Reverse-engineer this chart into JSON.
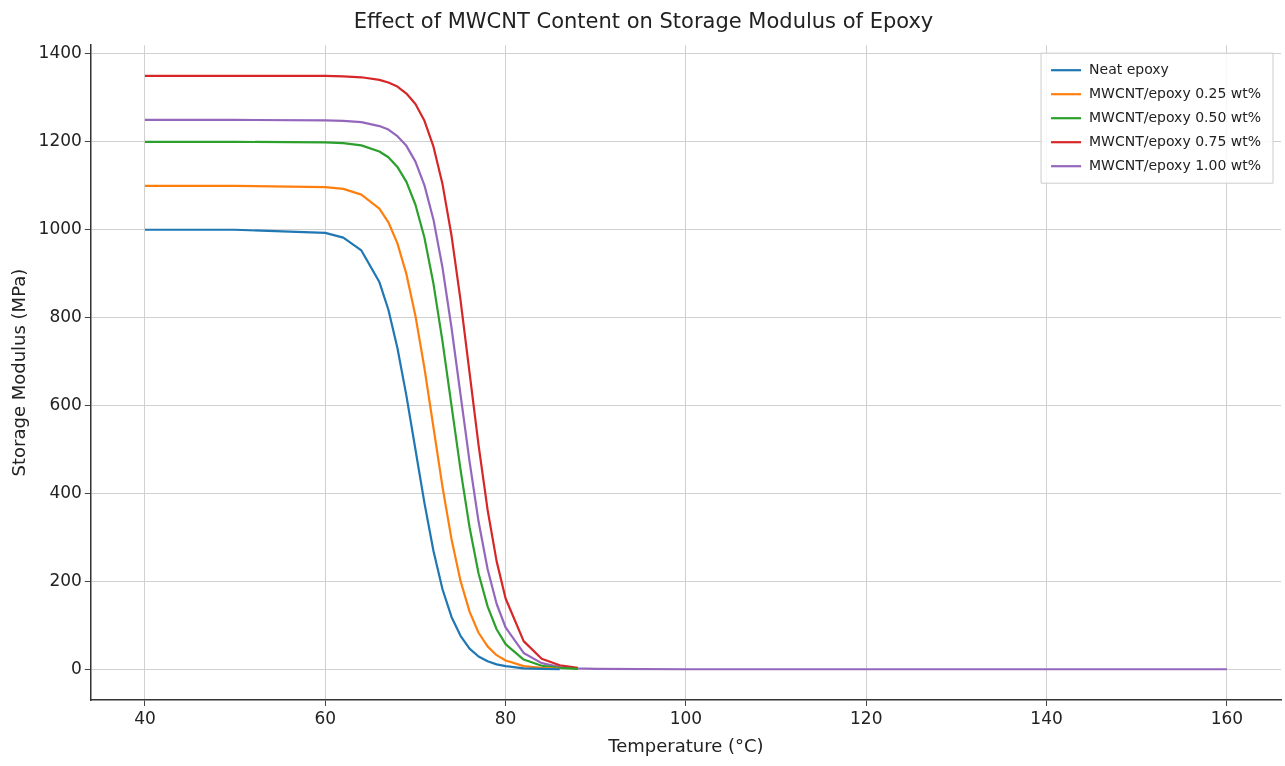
{
  "chart_data": {
    "type": "line",
    "title": "Effect of MWCNT Content on Storage Modulus of Epoxy",
    "xlabel": "Temperature (°C)",
    "ylabel": "Storage Modulus (MPa)",
    "x": [
      40,
      50,
      60,
      62,
      64,
      66,
      67,
      68,
      69,
      70,
      71,
      72,
      73,
      74,
      75,
      76,
      77,
      78,
      79,
      80,
      82,
      84,
      86,
      88,
      90,
      100,
      120,
      140,
      160
    ],
    "series": [
      {
        "name": "Neat epoxy",
        "color": "#1f77b4",
        "values": [
          1000,
          1000,
          993,
          982,
          953,
          881,
          818,
          731,
          622,
          500,
          378,
          269,
          182,
          119,
          76,
          47,
          29,
          18,
          11,
          7,
          2,
          1,
          0,
          null,
          null,
          null,
          null,
          null,
          null
        ]
      },
      {
        "name": "MWCNT/epoxy 0.25 wt%",
        "color": "#ff7f0e",
        "values": [
          1100,
          1100,
          1097,
          1093,
          1080,
          1048,
          1017,
          969,
          899,
          804,
          685,
          550,
          415,
          296,
          201,
          131,
          83,
          52,
          32,
          20,
          7,
          3,
          1,
          null,
          null,
          null,
          null,
          null,
          null
        ]
      },
      {
        "name": "MWCNT/epoxy 0.50 wt%",
        "color": "#2ca02c",
        "values": [
          1200,
          1200,
          1199,
          1197,
          1192,
          1178,
          1165,
          1143,
          1109,
          1057,
          982,
          877,
          746,
          600,
          454,
          323,
          218,
          143,
          91,
          57,
          22,
          8,
          3,
          1,
          null,
          null,
          null,
          null,
          null
        ]
      },
      {
        "name": "MWCNT/epoxy 0.75 wt%",
        "color": "#d62728",
        "values": [
          1350,
          1350,
          1350,
          1349,
          1347,
          1341,
          1335,
          1326,
          1310,
          1286,
          1248,
          1189,
          1104,
          987,
          840,
          675,
          510,
          363,
          246,
          161,
          64,
          24,
          9,
          3,
          null,
          null,
          null,
          null,
          null
        ]
      },
      {
        "name": "MWCNT/epoxy 1.00 wt%",
        "color": "#9467bd",
        "values": [
          1250,
          1250,
          1249,
          1248,
          1245,
          1236,
          1228,
          1213,
          1191,
          1155,
          1101,
          1023,
          914,
          777,
          625,
          473,
          336,
          228,
          149,
          95,
          37,
          14,
          5,
          2,
          1,
          0,
          0,
          0,
          0
        ]
      }
    ],
    "xlim": [
      34,
      166
    ],
    "xticks": [
      40,
      60,
      80,
      100,
      120,
      140,
      160
    ],
    "ylim": [
      -70,
      1420
    ],
    "yticks": [
      0,
      200,
      400,
      600,
      800,
      1000,
      1200,
      1400
    ],
    "grid": true,
    "legend": "top right",
    "marker": "none",
    "line_style": "solid"
  }
}
